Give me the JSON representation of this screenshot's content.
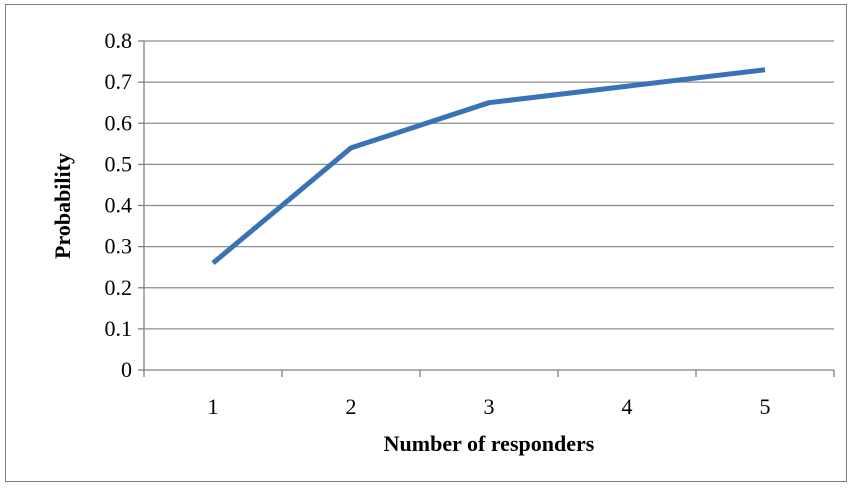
{
  "chart_data": {
    "type": "line",
    "title": "",
    "xlabel": "Number of responders",
    "ylabel": "Probability",
    "x": [
      1,
      2,
      3,
      4,
      5
    ],
    "series": [
      {
        "values": [
          0.26,
          0.54,
          0.65,
          0.69,
          0.73
        ]
      }
    ],
    "ylim": [
      0,
      0.8
    ],
    "yticks": [
      "0",
      "0.1",
      "0.2",
      "0.3",
      "0.4",
      "0.5",
      "0.6",
      "0.7",
      "0.8"
    ],
    "xticks": [
      "1",
      "2",
      "3",
      "4",
      "5"
    ],
    "grid": true,
    "legend": "none",
    "colors": {
      "line": "#3a72b6",
      "grid": "#8c8c8c",
      "axis": "#7f7f7f"
    }
  }
}
